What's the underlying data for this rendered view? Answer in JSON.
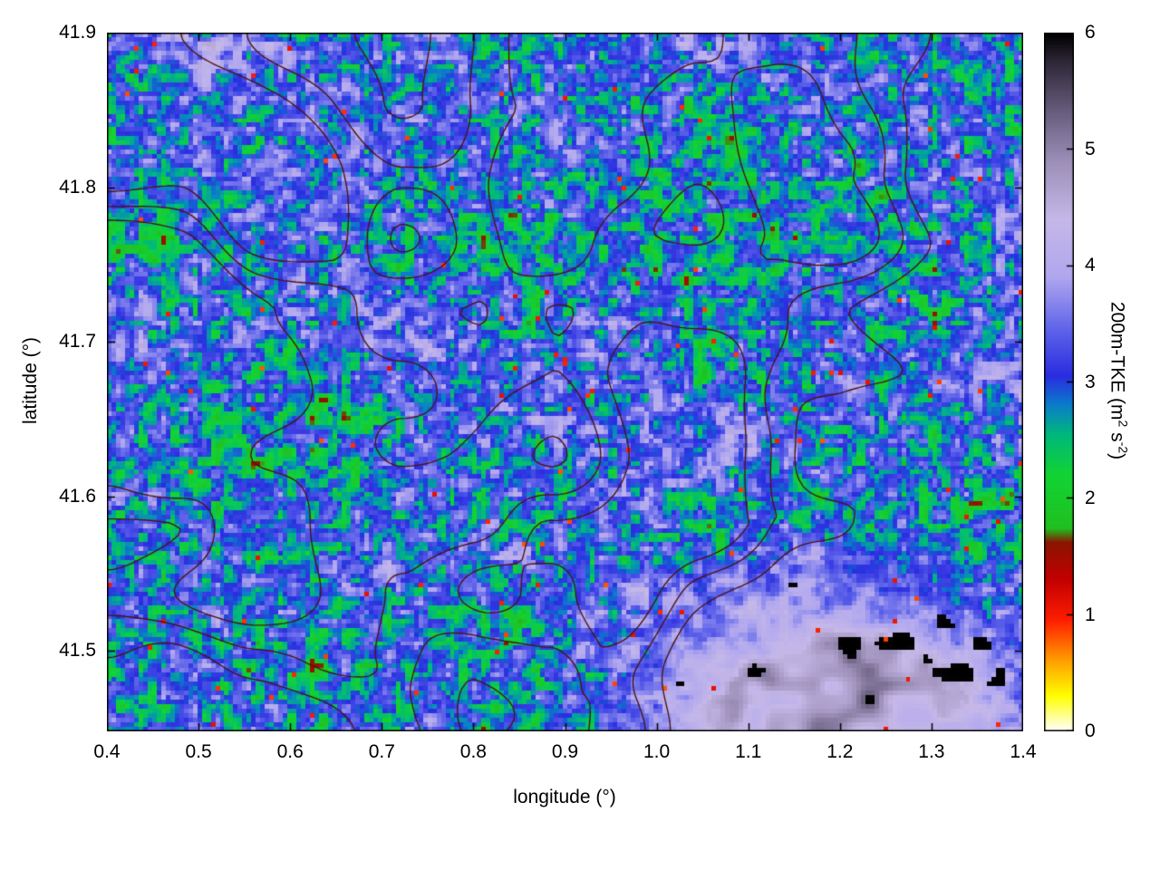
{
  "chart_data": {
    "type": "heatmap",
    "title": "",
    "xlabel": "longitude (°)",
    "ylabel": "latitude (°)",
    "x_range": [
      0.4,
      1.4
    ],
    "y_range": [
      41.448,
      41.9
    ],
    "x_ticks": [
      "0.4",
      "0.5",
      "0.6",
      "0.7",
      "0.8",
      "0.9",
      "1.0",
      "1.1",
      "1.2",
      "1.3",
      "1.4"
    ],
    "x_tick_values": [
      0.4,
      0.5,
      0.6,
      0.7,
      0.8,
      0.9,
      1.0,
      1.1,
      1.2,
      1.3,
      1.4
    ],
    "y_ticks": [
      "41.5",
      "41.6",
      "41.7",
      "41.8",
      "41.9"
    ],
    "y_tick_values": [
      41.5,
      41.6,
      41.7,
      41.8,
      41.9
    ],
    "grid": false,
    "colorbar": {
      "label_parts": {
        "prefix": "200m-TKE (m",
        "sup1": "2",
        "mid": " s",
        "sup2": "-2",
        "suffix": ")"
      },
      "range": [
        0,
        6
      ],
      "ticks": [
        "0",
        "1",
        "2",
        "3",
        "4",
        "5",
        "6"
      ],
      "tick_values": [
        0,
        1,
        2,
        3,
        4,
        5,
        6
      ]
    },
    "colormap": [
      [
        0.0,
        "#ffffff"
      ],
      [
        0.3,
        "#ffff00"
      ],
      [
        0.6,
        "#ffa000"
      ],
      [
        0.95,
        "#ff1e00"
      ],
      [
        1.3,
        "#c40000"
      ],
      [
        1.62,
        "#8b1500"
      ],
      [
        1.74,
        "#20c020"
      ],
      [
        2.2,
        "#12d434"
      ],
      [
        2.55,
        "#00b87d"
      ],
      [
        2.8,
        "#0a7ecb"
      ],
      [
        3.05,
        "#2a2de0"
      ],
      [
        3.45,
        "#5f64ea"
      ],
      [
        3.9,
        "#b0a7ef"
      ],
      [
        4.4,
        "#c6b8e8"
      ],
      [
        4.9,
        "#9c8fb8"
      ],
      [
        5.35,
        "#655a7a"
      ],
      [
        5.75,
        "#2e2838"
      ],
      [
        6.0,
        "#000000"
      ]
    ],
    "contour_levels": [
      0.46,
      0.52,
      0.58
    ],
    "contour_color": "#4a1414",
    "field_description": "200 m turbulent kinetic energy field: predominantly 2.5-4 m2 s-2 (blue with green speckle and lavender patches), isolated ~1 m2 s-2 red spots, an elevated 4-6 m2 s-2 lavender/grey region with near-black maxima in the southeast corner, pale band along the top edge, and dark-red terrain contour lines overlaid."
  }
}
